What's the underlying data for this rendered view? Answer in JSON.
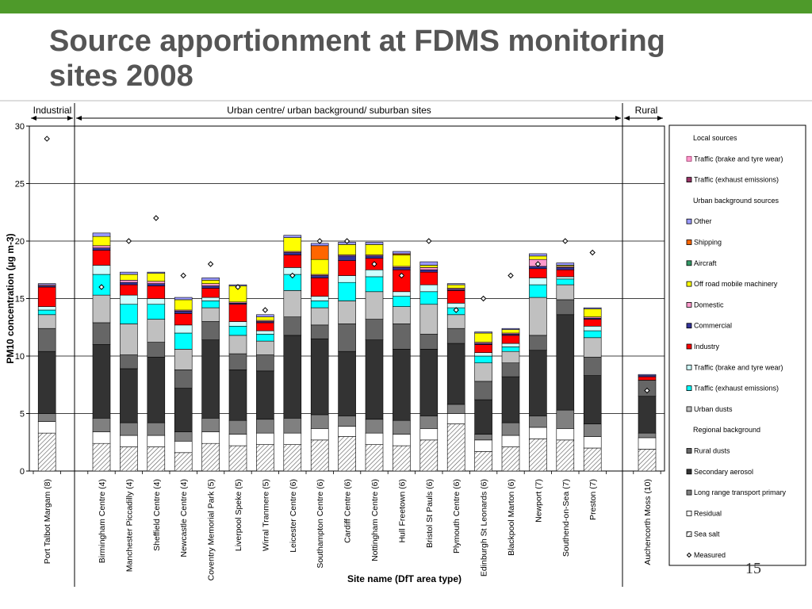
{
  "slide": {
    "title_line1": "Source apportionment at FDMS monitoring",
    "title_line2": "sites 2008",
    "number": "15"
  },
  "colors": {
    "accent_bar": "#4e9a2a",
    "title_text": "#555555"
  },
  "chart_data": {
    "type": "bar",
    "stacked": true,
    "ylabel": "PM10 concentration  (µg m-3)",
    "xlabel": "Site name (DfT area type)",
    "ylim": [
      0,
      30
    ],
    "yticks": [
      0,
      5,
      10,
      15,
      20,
      25,
      30
    ],
    "grid": true,
    "legend_position": "right",
    "group_labels": [
      {
        "label": "Industrial"
      },
      {
        "label": "Urban centre/ urban background/ suburban sites"
      },
      {
        "label": "Rural"
      }
    ],
    "categories": [
      "Port Talbot Margam (8)",
      "",
      "Birmingham Centre (4)",
      "Manchester Piccadilly (4)",
      "Sheffield Centre (4)",
      "Newcastle Centre (4)",
      "Coventry Memorial Park (5)",
      "Liverpool Speke (5)",
      "Wirral Tranmere (5)",
      "Leicester Centre (6)",
      "Southampton Centre (6)",
      "Cardiff Centre (6)",
      "Nottingham Centre (6)",
      "Hull Freetown (6)",
      "Bristol St Pauls (6)",
      "Plymouth Centre (6)",
      "Edinburgh St Leonards (6)",
      "Blackpool Marton (6)",
      "Newport (7)",
      "Southend-on-Sea (7)",
      "Preston (7)",
      "",
      "Auchencorth Moss (10)"
    ],
    "series": [
      {
        "name": "Sea salt",
        "color": "#ffffff",
        "pattern": "hatch",
        "values": [
          3.3,
          0,
          2.4,
          2.1,
          2.1,
          1.6,
          2.4,
          2.2,
          2.3,
          2.3,
          2.7,
          3.0,
          2.3,
          2.2,
          2.7,
          4.1,
          1.7,
          2.1,
          2.8,
          2.7,
          2.0,
          0,
          1.9
        ]
      },
      {
        "name": "Residual",
        "color": "#ffffff",
        "values": [
          1.0,
          0,
          1.0,
          1.0,
          1.0,
          1.0,
          1.0,
          1.0,
          1.0,
          1.0,
          1.0,
          0.9,
          1.0,
          1.0,
          1.0,
          0.9,
          1.0,
          1.0,
          1.0,
          1.0,
          1.0,
          0,
          1.0
        ]
      },
      {
        "name": "Long range transport primary",
        "color": "#808080",
        "values": [
          0.7,
          0,
          1.2,
          1.1,
          1.1,
          0.8,
          1.2,
          1.2,
          1.2,
          1.3,
          1.2,
          0.9,
          1.2,
          1.2,
          1.1,
          0.8,
          0.5,
          1.1,
          1.0,
          1.6,
          1.1,
          0,
          0.4
        ]
      },
      {
        "name": "Secondary aerosol",
        "color": "#333333",
        "values": [
          5.4,
          0,
          6.4,
          4.7,
          5.7,
          3.8,
          6.8,
          4.4,
          4.2,
          7.2,
          6.6,
          5.6,
          6.9,
          6.2,
          5.8,
          5.3,
          3.0,
          4.0,
          5.7,
          8.3,
          4.2,
          0,
          3.2
        ]
      },
      {
        "name": "Rural dusts",
        "color": "#666666",
        "values": [
          2.0,
          0,
          1.9,
          1.2,
          1.3,
          1.6,
          1.6,
          1.4,
          1.4,
          1.6,
          1.2,
          2.4,
          1.8,
          2.2,
          1.3,
          1.3,
          1.6,
          1.2,
          1.3,
          1.3,
          1.6,
          0,
          1.4
        ]
      },
      {
        "name": "Urban dusts",
        "color": "#c0c0c0",
        "values": [
          1.2,
          0,
          2.4,
          2.7,
          2.0,
          1.8,
          1.2,
          1.6,
          1.2,
          2.3,
          1.5,
          2.0,
          2.4,
          1.5,
          2.6,
          1.2,
          1.6,
          1.0,
          3.3,
          1.3,
          1.7,
          0,
          0
        ]
      },
      {
        "name": "Traffic (exhaust emissions)",
        "color": "#00ffff",
        "values": [
          0.4,
          0,
          1.8,
          1.7,
          1.3,
          1.4,
          0.6,
          0.8,
          0.6,
          1.4,
          0.6,
          1.6,
          1.3,
          0.9,
          1.1,
          0.6,
          0.6,
          0.4,
          1.1,
          0.5,
          0.6,
          0,
          0
        ]
      },
      {
        "name": "Traffic (brake and tyre wear)",
        "color": "#cfffff",
        "values": [
          0.3,
          0,
          0.8,
          0.8,
          0.5,
          0.7,
          0.3,
          0.4,
          0.3,
          0.6,
          0.4,
          0.6,
          0.6,
          0.4,
          0.6,
          0.4,
          0.3,
          0.3,
          0.6,
          0.2,
          0.4,
          0,
          0
        ]
      },
      {
        "name": "Industry",
        "color": "#ff0000",
        "values": [
          1.7,
          0,
          1.3,
          0.9,
          1.1,
          1.0,
          0.8,
          1.5,
          0.7,
          1.1,
          1.6,
          1.3,
          1.0,
          1.9,
          1.1,
          1.1,
          0.7,
          0.7,
          0.8,
          0.6,
          0.6,
          0,
          0.3
        ]
      },
      {
        "name": "Commercial",
        "color": "#333399",
        "values": [
          0.1,
          0,
          0.2,
          0.2,
          0.2,
          0.2,
          0.2,
          0.1,
          0.1,
          0.2,
          0.2,
          0.4,
          0.2,
          0.2,
          0.2,
          0.1,
          0.1,
          0.1,
          0.2,
          0.2,
          0.1,
          0,
          0.1
        ]
      },
      {
        "name": "Domestic",
        "color": "#ff99cc",
        "values": [
          0.1,
          0,
          0.2,
          0.2,
          0.2,
          0.1,
          0.2,
          0.1,
          0.1,
          0.1,
          0.1,
          0.1,
          0.1,
          0.1,
          0.2,
          0.1,
          0.1,
          0.1,
          0.6,
          0.1,
          0.1,
          0,
          0
        ]
      },
      {
        "name": "Off road mobile machinery",
        "color": "#ffff00",
        "values": [
          0,
          0,
          0.8,
          0.5,
          0.7,
          0.9,
          0.3,
          1.4,
          0.3,
          1.2,
          1.3,
          0.9,
          0.9,
          1.0,
          0.2,
          0.3,
          0.8,
          0.3,
          0.3,
          0.1,
          0.7,
          0,
          0
        ]
      },
      {
        "name": "Aircraft",
        "color": "#339966",
        "values": [
          0,
          0,
          0,
          0,
          0,
          0,
          0,
          0,
          0,
          0,
          0,
          0,
          0,
          0,
          0,
          0,
          0,
          0,
          0,
          0,
          0,
          0,
          0
        ]
      },
      {
        "name": "Shipping",
        "color": "#ff6600",
        "values": [
          0,
          0,
          0,
          0,
          0,
          0,
          0,
          0,
          0,
          0,
          1.2,
          0,
          0,
          0.1,
          0,
          0,
          0,
          0,
          0,
          0,
          0,
          0,
          0
        ]
      },
      {
        "name": "Other",
        "color": "#9999ff",
        "values": [
          0.1,
          0,
          0.3,
          0.2,
          0.1,
          0.2,
          0.2,
          0.1,
          0.2,
          0.2,
          0.2,
          0.2,
          0.2,
          0.2,
          0.3,
          0.1,
          0.1,
          0.1,
          0.2,
          0.2,
          0.1,
          0,
          0.1
        ]
      }
    ],
    "measured": {
      "name": "Measured",
      "values": [
        28.9,
        null,
        16.0,
        20.0,
        22.0,
        17.0,
        18.0,
        16.0,
        14.0,
        17.0,
        20.0,
        20.0,
        18.0,
        17.0,
        20.0,
        14.0,
        15.0,
        17.0,
        18.0,
        20.0,
        19.0,
        null,
        7.0
      ]
    },
    "legend_items": [
      {
        "label": "Local sources",
        "kind": "heading"
      },
      {
        "label": "Traffic (brake and tyre wear)",
        "color": "#ff99cc",
        "border": "#993366"
      },
      {
        "label": "Traffic (exhaust emissions)",
        "color": "#993366",
        "border": "#000000"
      },
      {
        "label": "Urban background sources",
        "kind": "heading"
      },
      {
        "label": "Other",
        "color": "#9999ff"
      },
      {
        "label": "Shipping",
        "color": "#ff6600"
      },
      {
        "label": "Aircraft",
        "color": "#339966"
      },
      {
        "label": "Off road mobile machinery",
        "color": "#ffff00"
      },
      {
        "label": "Domestic",
        "color": "#ff99cc"
      },
      {
        "label": "Commercial",
        "color": "#333399"
      },
      {
        "label": "Industry",
        "color": "#ff0000"
      },
      {
        "label": "Traffic (brake and tyre wear)",
        "color": "#cfffff"
      },
      {
        "label": "Traffic (exhaust emissions)",
        "color": "#00ffff"
      },
      {
        "label": "Urban dusts",
        "color": "#c0c0c0"
      },
      {
        "label": "Regional background",
        "kind": "heading"
      },
      {
        "label": "Rural dusts",
        "color": "#666666"
      },
      {
        "label": "Secondary aerosol",
        "color": "#333333"
      },
      {
        "label": "Long range transport primary",
        "color": "#808080"
      },
      {
        "label": "Residual",
        "color": "#ffffff"
      },
      {
        "label": "Sea salt",
        "color": "#ffffff",
        "pattern": "hatch"
      },
      {
        "label": "Measured",
        "kind": "marker"
      }
    ]
  }
}
